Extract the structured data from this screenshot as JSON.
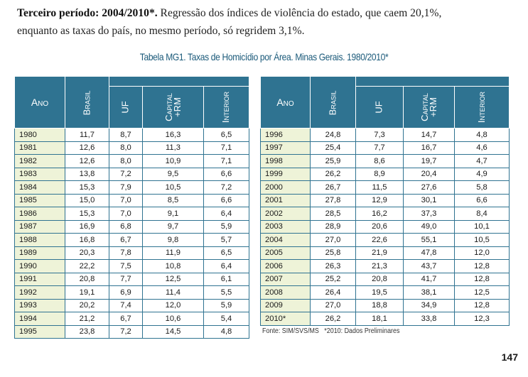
{
  "intro": {
    "lead": "Terceiro período: 2004/2010*.",
    "line1_rest": " Regressão dos índices de violência do estado, que caem 20,1%,",
    "line2": "enquanto as taxas do país, no mesmo período, só regridem 3,1%."
  },
  "caption": "Tabela MG1. Taxas de Homicídio por Área. Minas Gerais. 1980/2010*",
  "headers": {
    "ano": "Ano",
    "brasil": "Brasil",
    "uf": "UF",
    "capital": "Capital\n+RM",
    "interior": "Interior"
  },
  "left_rows": [
    [
      "1980",
      "11,7",
      "8,7",
      "16,3",
      "6,5"
    ],
    [
      "1981",
      "12,6",
      "8,0",
      "11,3",
      "7,1"
    ],
    [
      "1982",
      "12,6",
      "8,0",
      "10,9",
      "7,1"
    ],
    [
      "1983",
      "13,8",
      "7,2",
      "9,5",
      "6,6"
    ],
    [
      "1984",
      "15,3",
      "7,9",
      "10,5",
      "7,2"
    ],
    [
      "1985",
      "15,0",
      "7,0",
      "8,5",
      "6,6"
    ],
    [
      "1986",
      "15,3",
      "7,0",
      "9,1",
      "6,4"
    ],
    [
      "1987",
      "16,9",
      "6,8",
      "9,7",
      "5,9"
    ],
    [
      "1988",
      "16,8",
      "6,7",
      "9,8",
      "5,7"
    ],
    [
      "1989",
      "20,3",
      "7,8",
      "11,9",
      "6,5"
    ],
    [
      "1990",
      "22,2",
      "7,5",
      "10,8",
      "6,4"
    ],
    [
      "1991",
      "20,8",
      "7,7",
      "12,5",
      "6,1"
    ],
    [
      "1992",
      "19,1",
      "6,9",
      "11,4",
      "5,5"
    ],
    [
      "1993",
      "20,2",
      "7,4",
      "12,0",
      "5,9"
    ],
    [
      "1994",
      "21,2",
      "6,7",
      "10,6",
      "5,4"
    ],
    [
      "1995",
      "23,8",
      "7,2",
      "14,5",
      "4,8"
    ]
  ],
  "right_rows": [
    [
      "1996",
      "24,8",
      "7,3",
      "14,7",
      "4,8"
    ],
    [
      "1997",
      "25,4",
      "7,7",
      "16,7",
      "4,6"
    ],
    [
      "1998",
      "25,9",
      "8,6",
      "19,7",
      "4,7"
    ],
    [
      "1999",
      "26,2",
      "8,9",
      "20,4",
      "4,9"
    ],
    [
      "2000",
      "26,7",
      "11,5",
      "27,6",
      "5,8"
    ],
    [
      "2001",
      "27,8",
      "12,9",
      "30,1",
      "6,6"
    ],
    [
      "2002",
      "28,5",
      "16,2",
      "37,3",
      "8,4"
    ],
    [
      "2003",
      "28,9",
      "20,6",
      "49,0",
      "10,1"
    ],
    [
      "2004",
      "27,0",
      "22,6",
      "55,1",
      "10,5"
    ],
    [
      "2005",
      "25,8",
      "21,9",
      "47,8",
      "12,0"
    ],
    [
      "2006",
      "26,3",
      "21,3",
      "43,7",
      "12,8"
    ],
    [
      "2007",
      "25,2",
      "20,8",
      "41,7",
      "12,8"
    ],
    [
      "2008",
      "26,4",
      "19,5",
      "38,1",
      "12,5"
    ],
    [
      "2009",
      "27,0",
      "18,8",
      "34,9",
      "12,8"
    ],
    [
      "2010*",
      "26,2",
      "18,1",
      "33,8",
      "12,3"
    ]
  ],
  "source": "Fonte: SIM/SVS/MS   *2010: Dados Preliminares",
  "page_number": "147"
}
